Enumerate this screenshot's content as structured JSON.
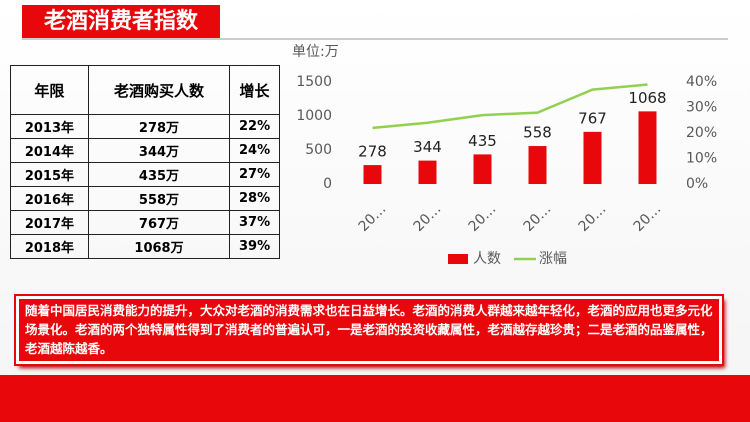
{
  "header": {
    "title": "老酒消费者指数"
  },
  "table": {
    "columns": [
      "年限",
      "老酒购买人数",
      "增长"
    ],
    "rows": [
      [
        "2013年",
        "278万",
        "22%"
      ],
      [
        "2014年",
        "344万",
        "24%"
      ],
      [
        "2015年",
        "435万",
        "27%"
      ],
      [
        "2016年",
        "558万",
        "28%"
      ],
      [
        "2017年",
        "767万",
        "37%"
      ],
      [
        "2018年",
        "1068万",
        "39%"
      ]
    ]
  },
  "chart_data": {
    "type": "bar",
    "unit_label": "单位:万",
    "categories": [
      "20…",
      "20…",
      "20…",
      "20…",
      "20…",
      "20…"
    ],
    "series": [
      {
        "name": "人数",
        "color": "#e8070b",
        "values": [
          278,
          344,
          435,
          558,
          767,
          1068
        ]
      },
      {
        "name": "涨幅",
        "color": "#92d050",
        "type": "line",
        "axis": "y2",
        "values": [
          22,
          24,
          27,
          28,
          37,
          39
        ]
      }
    ],
    "ylim": [
      0,
      1500
    ],
    "yticks": [
      0,
      500,
      1000,
      1500
    ],
    "y2lim": [
      0,
      40
    ],
    "y2ticks": [
      {
        "value": 0,
        "label": "0%"
      },
      {
        "value": 10,
        "label": "10%"
      },
      {
        "value": 20,
        "label": "20%"
      },
      {
        "value": 30,
        "label": "30%"
      },
      {
        "value": 40,
        "label": "40%"
      }
    ],
    "legend": "bottom",
    "grid": false
  },
  "note": "随着中国居民消费能力的提升，大众对老酒的消费需求也在日益增长。老酒的消费人群越来越年轻化，老酒的应用也更多元化场景化。老酒的两个独特属性得到了消费者的普遍认可，一是老酒的投资收藏属性，老酒越存越珍贵；二是老酒的品鉴属性，老酒越陈越香。"
}
